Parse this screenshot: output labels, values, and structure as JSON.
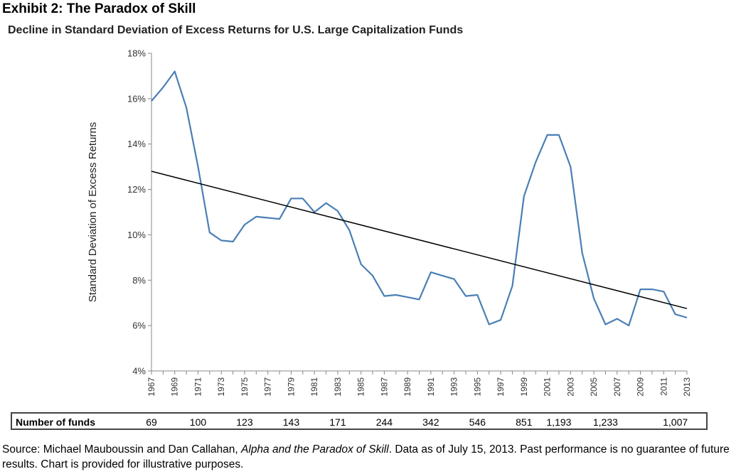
{
  "header": {
    "exhibit_title": "Exhibit 2: The Paradox of Skill"
  },
  "chart_data": {
    "type": "line",
    "title": "Decline in Standard Deviation of Excess Returns for U.S. Large Capitalization Funds",
    "xlabel": "",
    "ylabel": "Standard Deviation of Excess Returns",
    "ylim": [
      4,
      18
    ],
    "yticks": [
      4,
      6,
      8,
      10,
      12,
      14,
      16,
      18
    ],
    "ytick_labels": [
      "4%",
      "6%",
      "8%",
      "10%",
      "12%",
      "14%",
      "16%",
      "18%"
    ],
    "xlim": [
      1967,
      2013
    ],
    "xtick_labels": [
      "1967",
      "1969",
      "1971",
      "1973",
      "1975",
      "1977",
      "1979",
      "1981",
      "1983",
      "1985",
      "1987",
      "1989",
      "1991",
      "1993",
      "1995",
      "1997",
      "1999",
      "2001",
      "2003",
      "2005",
      "2007",
      "2009",
      "2011",
      "2013"
    ],
    "grid": false,
    "legend": "none",
    "series": [
      {
        "color": "#4a7fb5",
        "x": [
          1967,
          1968,
          1969,
          1970,
          1971,
          1972,
          1973,
          1974,
          1975,
          1976,
          1977,
          1978,
          1979,
          1980,
          1981,
          1982,
          1983,
          1984,
          1985,
          1986,
          1987,
          1988,
          1989,
          1990,
          1991,
          1992,
          1993,
          1994,
          1995,
          1996,
          1997,
          1998,
          1999,
          2000,
          2001,
          2002,
          2003,
          2004,
          2005,
          2006,
          2007,
          2008,
          2009,
          2010,
          2011,
          2012,
          2013
        ],
        "values": [
          15.9,
          16.5,
          17.2,
          15.6,
          13.0,
          10.1,
          9.75,
          9.7,
          10.45,
          10.8,
          10.75,
          10.7,
          11.6,
          11.6,
          11.0,
          11.4,
          11.05,
          10.2,
          8.7,
          8.2,
          7.3,
          7.35,
          7.25,
          7.15,
          8.35,
          8.2,
          8.05,
          7.3,
          7.35,
          6.05,
          6.25,
          7.75,
          11.7,
          13.2,
          14.4,
          14.4,
          13.0,
          9.2,
          7.2,
          6.05,
          6.3,
          6.0,
          7.6,
          7.6,
          7.5,
          6.5,
          6.35
        ]
      }
    ],
    "trendline": {
      "color": "#000000",
      "x": [
        1967,
        2013
      ],
      "values": [
        12.8,
        6.75
      ]
    }
  },
  "funds_table": {
    "label": "Number of funds",
    "counts": [
      {
        "year": 1967,
        "value": "69"
      },
      {
        "year": 1971,
        "value": "100"
      },
      {
        "year": 1975,
        "value": "123"
      },
      {
        "year": 1979,
        "value": "143"
      },
      {
        "year": 1983,
        "value": "171"
      },
      {
        "year": 1987,
        "value": "244"
      },
      {
        "year": 1991,
        "value": "342"
      },
      {
        "year": 1995,
        "value": "546"
      },
      {
        "year": 1999,
        "value": "851"
      },
      {
        "year": 2002,
        "value": "1,193"
      },
      {
        "year": 2006,
        "value": "1,233"
      },
      {
        "year": 2012,
        "value": "1,007"
      }
    ]
  },
  "footer": {
    "source_prefix": "Source: Michael Mauboussin and Dan Callahan, ",
    "source_title": "Alpha and the Paradox of Skill",
    "source_suffix": ". Data as of July 15, 2013. Past performance is no guarantee of future results. Chart is provided for illustrative purposes."
  }
}
